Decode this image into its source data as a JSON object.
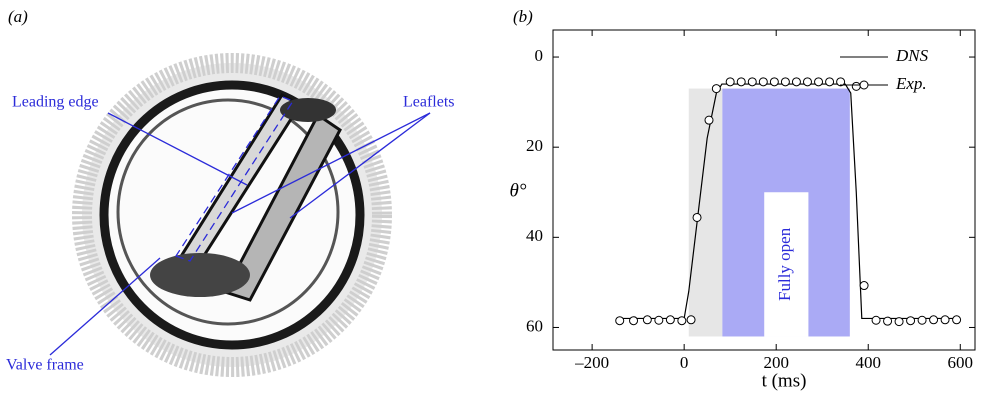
{
  "panel_a": {
    "label": "(a)",
    "annotations": [
      "Leading edge",
      "Leaflets",
      "Valve frame"
    ]
  },
  "chart_data": {
    "type": "line",
    "label": "(b)",
    "x_label": "t (ms)",
    "y_label": "θ°",
    "xlim": [
      -285,
      632
    ],
    "ylim": [
      65,
      -6
    ],
    "xticks": [
      {
        "value": -200,
        "label": "–200"
      },
      0,
      200,
      400,
      600
    ],
    "yticks": [
      0,
      20,
      40,
      60
    ],
    "legend": "top-right",
    "regions": [
      {
        "x": [
          10,
          83
        ],
        "y": [
          7,
          62
        ],
        "color": "#e6e6e6"
      },
      {
        "x": [
          83,
          360
        ],
        "y": [
          7,
          62
        ],
        "color": "#aaaaf5"
      },
      {
        "x": [
          174,
          270
        ],
        "y": [
          30,
          62
        ],
        "color": "#ffffff",
        "text": "Fully open",
        "text_color": "#2b2bd9"
      }
    ],
    "series": [
      {
        "name": "DNS",
        "color": "#000000",
        "marker": "none",
        "x": [
          -140,
          0,
          10,
          30,
          50,
          70,
          82,
          350,
          362,
          374,
          386,
          600
        ],
        "values": [
          58,
          58,
          52,
          35,
          18,
          8,
          6,
          6,
          8,
          30,
          58,
          58
        ]
      },
      {
        "name": "Exp.",
        "color": "#000000",
        "marker": "circle",
        "x": [
          -140,
          -110,
          -80,
          -55,
          -30,
          -5,
          15,
          28,
          54,
          70,
          100,
          124,
          148,
          172,
          196,
          220,
          244,
          268,
          292,
          316,
          340,
          374,
          391,
          417,
          442,
          467,
          492,
          517,
          542,
          567,
          592
        ],
        "values": [
          58.5,
          58.5,
          58.3,
          58.4,
          58.3,
          58.5,
          58.3,
          35.6,
          14,
          7,
          5.5,
          5.5,
          5.5,
          5.5,
          5.5,
          5.5,
          5.5,
          5.5,
          5.5,
          5.5,
          5.5,
          6.5,
          50.7,
          58.4,
          58.6,
          58.7,
          58.5,
          58.4,
          58.3,
          58.3,
          58.3
        ]
      }
    ]
  }
}
